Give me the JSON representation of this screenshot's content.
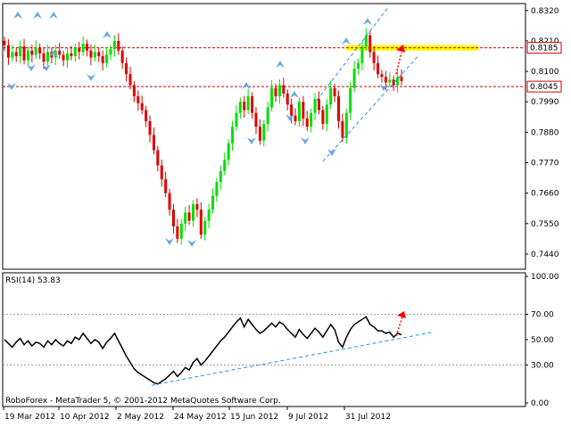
{
  "colors": {
    "bull": "#00e000",
    "bear": "#e00000",
    "frame": "#000000",
    "level": "#cc0000",
    "zone": "#ffff00",
    "trend": "#1e90ff",
    "arrow": "#6aa6e6",
    "rsi_line": "#000000",
    "rsi_levels": "#999999",
    "forecast": "#ff0000"
  },
  "price_panel": {
    "y_ticks": [
      "0.8320",
      "0.8210",
      "0.8100",
      "0.7990",
      "0.7880",
      "0.7770",
      "0.7660",
      "0.7550",
      "0.7440"
    ],
    "level_labels": [
      "0.8185",
      "0.8045"
    ]
  },
  "rsi_panel": {
    "label": "RSI(14) 53.83",
    "y_ticks": [
      "100.00",
      "70.00",
      "50.00",
      "30.00",
      "0.00"
    ],
    "copyright": "RoboForex - MetaTrader 5, © 2001-2012 MetaQuotes Software Corp."
  },
  "x_axis": {
    "labels": [
      "19 Mar 2012",
      "10 Apr 2012",
      "2 May 2012",
      "24 May 2012",
      "15 Jun 2012",
      "9 Jul 2012",
      "31 Jul 2012"
    ]
  },
  "chart_data": [
    {
      "type": "candlestick",
      "ylim": [
        0.7385,
        0.8345
      ],
      "y_ticks": [
        0.832,
        0.821,
        0.81,
        0.799,
        0.788,
        0.777,
        0.766,
        0.755,
        0.744
      ],
      "x_labels": [
        "19 Mar 2012",
        "10 Apr 2012",
        "2 May 2012",
        "24 May 2012",
        "15 Jun 2012",
        "9 Jul 2012",
        "31 Jul 2012"
      ],
      "close": [
        0.8195,
        0.815,
        0.817,
        0.8155,
        0.819,
        0.814,
        0.8175,
        0.816,
        0.8185,
        0.8165,
        0.8135,
        0.817,
        0.815,
        0.8175,
        0.816,
        0.814,
        0.8165,
        0.8155,
        0.8185,
        0.817,
        0.82,
        0.8175,
        0.815,
        0.817,
        0.8155,
        0.813,
        0.816,
        0.818,
        0.821,
        0.8175,
        0.813,
        0.809,
        0.805,
        0.801,
        0.7985,
        0.796,
        0.792,
        0.787,
        0.7815,
        0.776,
        0.771,
        0.766,
        0.76,
        0.754,
        0.7495,
        0.755,
        0.759,
        0.756,
        0.762,
        0.76,
        0.751,
        0.756,
        0.76,
        0.765,
        0.77,
        0.774,
        0.778,
        0.784,
        0.79,
        0.795,
        0.799,
        0.796,
        0.801,
        0.795,
        0.79,
        0.785,
        0.791,
        0.797,
        0.804,
        0.801,
        0.805,
        0.802,
        0.798,
        0.794,
        0.792,
        0.799,
        0.793,
        0.79,
        0.795,
        0.8,
        0.796,
        0.791,
        0.798,
        0.804,
        0.801,
        0.792,
        0.786,
        0.795,
        0.804,
        0.811,
        0.813,
        0.819,
        0.823,
        0.817,
        0.813,
        0.809,
        0.808,
        0.806,
        0.807,
        0.805,
        0.808,
        0.8065
      ],
      "levels": [
        0.8185,
        0.8045
      ],
      "resistance_zone": [
        0.8175,
        0.8195
      ]
    },
    {
      "type": "line",
      "name": "RSI(14)",
      "ylim": [
        0,
        100
      ],
      "y_ticks": [
        100,
        70,
        50,
        30,
        0
      ],
      "values": [
        50,
        47,
        44,
        48,
        51,
        46,
        49,
        45,
        48,
        47,
        44,
        49,
        46,
        50,
        47,
        45,
        49,
        47,
        52,
        50,
        55,
        51,
        47,
        50,
        48,
        43,
        48,
        51,
        55,
        49,
        43,
        37,
        32,
        27,
        24,
        22,
        20,
        18,
        16,
        15,
        17,
        19,
        22,
        25,
        21,
        24,
        28,
        26,
        32,
        35,
        30,
        33,
        37,
        41,
        45,
        49,
        52,
        56,
        60,
        64,
        67,
        60,
        66,
        62,
        58,
        55,
        57,
        60,
        63,
        60,
        64,
        62,
        58,
        55,
        52,
        58,
        54,
        51,
        55,
        59,
        56,
        52,
        57,
        62,
        58,
        48,
        44,
        52,
        58,
        62,
        64,
        66,
        68,
        62,
        60,
        57,
        57,
        55,
        56,
        52,
        55,
        53.83
      ]
    }
  ]
}
